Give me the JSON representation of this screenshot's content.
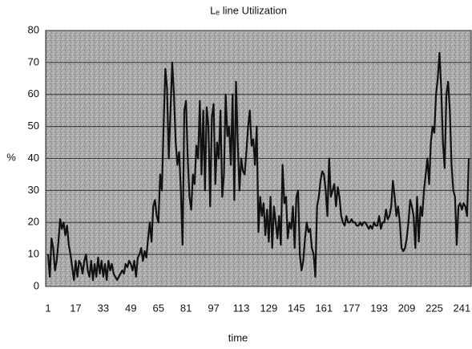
{
  "chart_data": {
    "type": "line",
    "title": "Lₑ line Utilization",
    "x_label": "time",
    "y_label": "%",
    "categories": [
      1,
      null,
      null,
      null,
      null,
      null,
      null,
      null,
      null,
      null,
      null,
      null,
      null,
      null,
      null,
      null,
      17,
      null,
      null,
      null,
      null,
      null,
      null,
      null,
      null,
      null,
      null,
      null,
      null,
      null,
      null,
      null,
      33,
      null,
      null,
      null,
      null,
      null,
      null,
      null,
      null,
      null,
      null,
      null,
      null,
      null,
      null,
      null,
      49,
      null,
      null,
      null,
      null,
      null,
      null,
      null,
      null,
      null,
      null,
      null,
      null,
      null,
      null,
      null,
      65,
      null,
      null,
      null,
      null,
      null,
      null,
      null,
      null,
      null,
      null,
      null,
      null,
      null,
      null,
      null,
      81,
      null,
      null,
      null,
      null,
      null,
      null,
      null,
      null,
      null,
      null,
      null,
      null,
      null,
      null,
      null,
      97,
      null,
      null,
      null,
      null,
      null,
      null,
      null,
      null,
      null,
      null,
      null,
      null,
      null,
      null,
      null,
      113,
      null,
      null,
      null,
      null,
      null,
      null,
      null,
      null,
      null,
      null,
      null,
      null,
      null,
      null,
      null,
      129,
      null,
      null,
      null,
      null,
      null,
      null,
      null,
      null,
      null,
      null,
      null,
      null,
      null,
      null,
      null,
      145,
      null,
      null,
      null,
      null,
      null,
      null,
      null,
      null,
      null,
      null,
      null,
      null,
      null,
      null,
      null,
      161,
      null,
      null,
      null,
      null,
      null,
      null,
      null,
      null,
      null,
      null,
      null,
      null,
      null,
      null,
      null,
      177,
      null,
      null,
      null,
      null,
      null,
      null,
      null,
      null,
      null,
      null,
      null,
      null,
      null,
      null,
      null,
      193,
      null,
      null,
      null,
      null,
      null,
      null,
      null,
      null,
      null,
      null,
      null,
      null,
      null,
      null,
      null,
      209,
      null,
      null,
      null,
      null,
      null,
      null,
      null,
      null,
      null,
      null,
      null,
      null,
      null,
      null,
      null,
      225,
      null,
      null,
      null,
      null,
      null,
      null,
      null,
      null,
      null,
      null,
      null,
      null,
      null,
      null,
      null,
      241,
      null,
      null,
      null,
      null
    ],
    "values": [
      10,
      3,
      15,
      12,
      5,
      8,
      14,
      21,
      18,
      20,
      16,
      19,
      13,
      10,
      6,
      2,
      8,
      3,
      8,
      7,
      4,
      8,
      10,
      5,
      3,
      8,
      2,
      7,
      3,
      9,
      4,
      8,
      3,
      7,
      2,
      8,
      5,
      7,
      4,
      3,
      2,
      3,
      4,
      5,
      4,
      7,
      6,
      8,
      7,
      5,
      8,
      3,
      9,
      10,
      12,
      8,
      11,
      9,
      15,
      20,
      14,
      25,
      27,
      22,
      20,
      35,
      30,
      50,
      68,
      62,
      40,
      55,
      70,
      60,
      45,
      38,
      42,
      30,
      13,
      55,
      58,
      40,
      28,
      24,
      35,
      32,
      44,
      40,
      58,
      35,
      55,
      30,
      56,
      50,
      25,
      53,
      57,
      32,
      45,
      40,
      55,
      28,
      35,
      60,
      47,
      50,
      38,
      60,
      27,
      64,
      45,
      30,
      40,
      36,
      35,
      42,
      50,
      55,
      44,
      46,
      38,
      50,
      17,
      28,
      22,
      26,
      16,
      24,
      14,
      28,
      12,
      25,
      20,
      15,
      22,
      13,
      38,
      26,
      28,
      15,
      20,
      18,
      25,
      12,
      28,
      30,
      10,
      5,
      8,
      15,
      20,
      17,
      18,
      12,
      10,
      3,
      25,
      28,
      33,
      36,
      35,
      30,
      22,
      40,
      28,
      30,
      32,
      25,
      31,
      28,
      22,
      20,
      19,
      22,
      20,
      20,
      21,
      20,
      20,
      19,
      19,
      20,
      19,
      20,
      20,
      19,
      18,
      19,
      18,
      20,
      19,
      19,
      22,
      18,
      20,
      20,
      24,
      21,
      22,
      25,
      33,
      28,
      22,
      25,
      20,
      12,
      11,
      12,
      15,
      20,
      27,
      25,
      22,
      12,
      28,
      14,
      25,
      22,
      30,
      35,
      40,
      32,
      45,
      50,
      48,
      60,
      65,
      73,
      62,
      45,
      37,
      60,
      64,
      55,
      38,
      30,
      28,
      13,
      25,
      26,
      24,
      26,
      25,
      22,
      40
    ],
    "color": "#111111",
    "ylim": [
      0,
      80
    ],
    "yticks": [
      0,
      10,
      20,
      30,
      40,
      50,
      60,
      70,
      80
    ],
    "grid": true
  }
}
